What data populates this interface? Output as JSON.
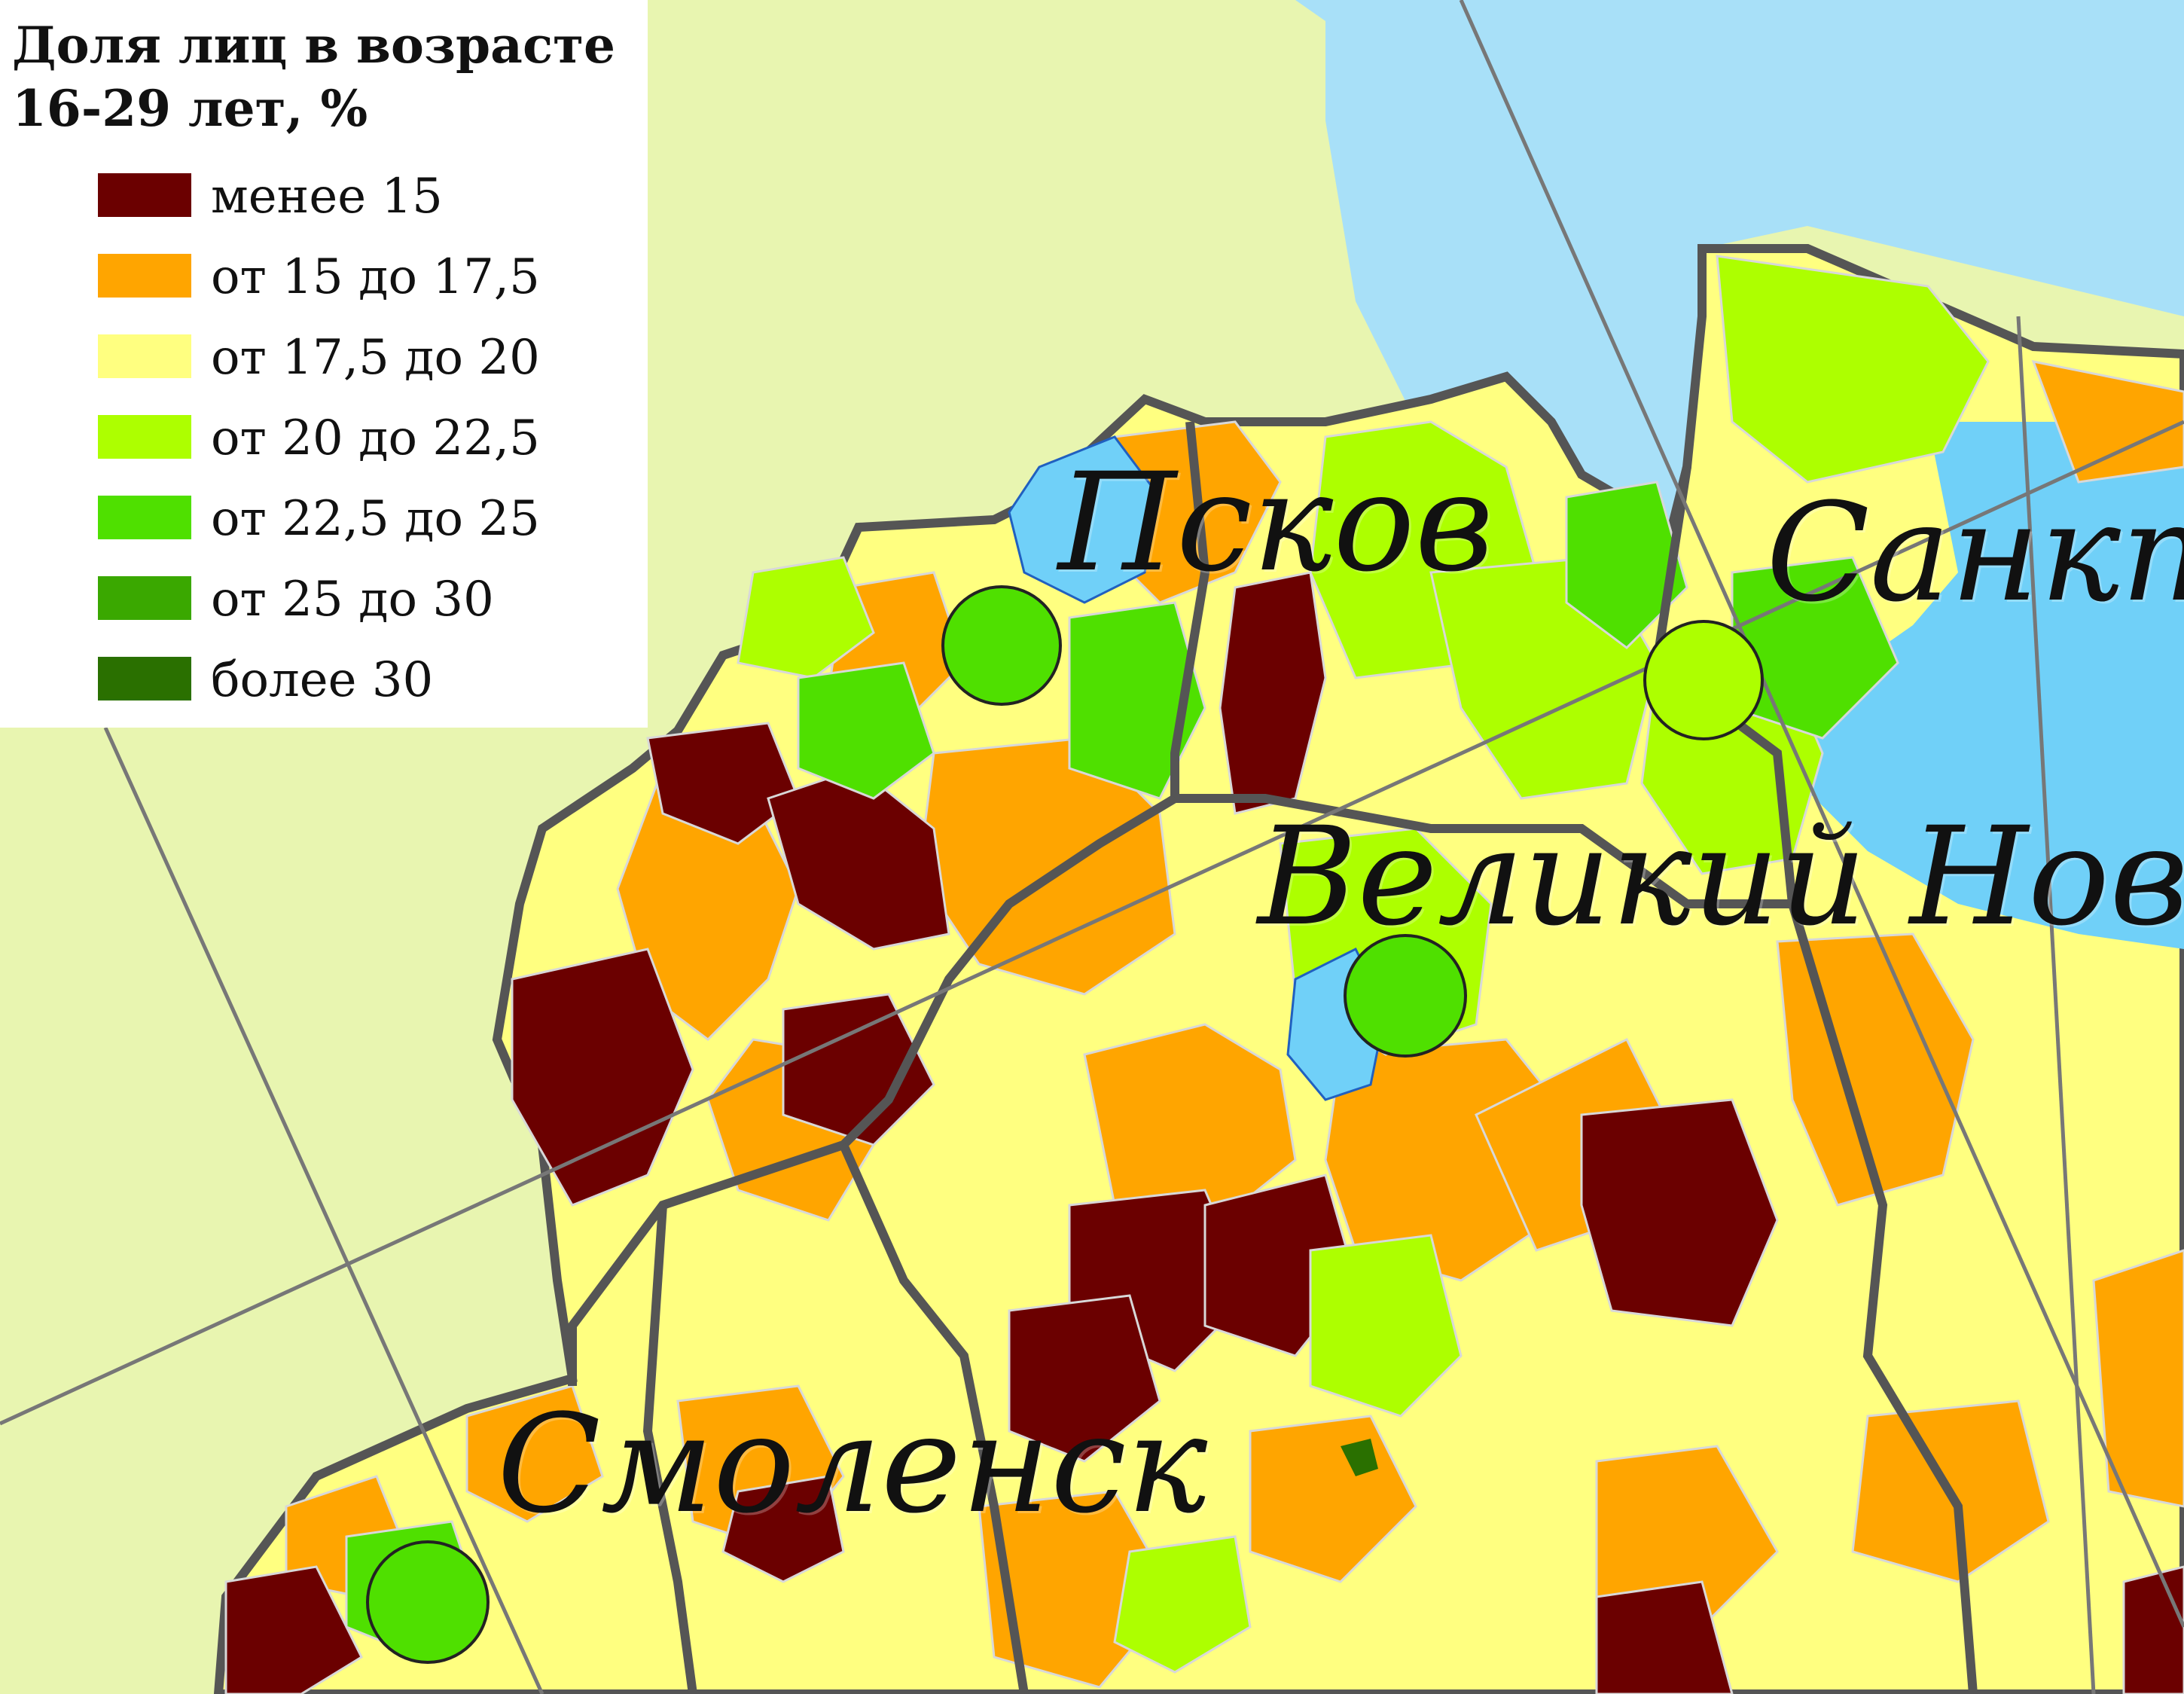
{
  "legend": {
    "title_line1": "Доля лиц в возрасте",
    "title_line2": "16-29 лет, %",
    "items": [
      {
        "label": "менее 15",
        "color": "#6b0000"
      },
      {
        "label": "от 15 до 17,5",
        "color": "#ffa500"
      },
      {
        "label": "от 17,5 до 20",
        "color": "#ffff80"
      },
      {
        "label": "от 20 до 22,5",
        "color": "#adff00"
      },
      {
        "label": "от 22,5 до 25",
        "color": "#4fe000"
      },
      {
        "label": "от 25 до 30",
        "color": "#3aa800"
      },
      {
        "label": "более 30",
        "color": "#2a7000"
      }
    ]
  },
  "cities": [
    {
      "name": "Псков",
      "marker_color": "#4fe000"
    },
    {
      "name": "Санкт",
      "marker_color": "#adff00"
    },
    {
      "name": "Великий Новгор",
      "marker_color": "#4fe000"
    },
    {
      "name": "Смоленск",
      "marker_color": "#4fe000"
    }
  ],
  "colors": {
    "land_outside": "#e8f5b0",
    "water": "#a8e0f8",
    "lake": "#70d0f8",
    "border": "#555555",
    "district_line": "#cfcfcf"
  }
}
